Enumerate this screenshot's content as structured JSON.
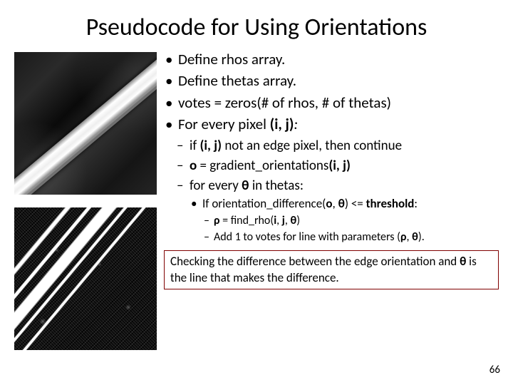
{
  "title": "Pseudocode for Using Orientations",
  "bullets": {
    "b1": "Define rhos array.",
    "b2": "Define thetas array.",
    "b3": "votes = zeros(# of rhos, # of thetas)",
    "b4_prefix": "For every pixel ",
    "b4_bold": "(i, j)",
    "b4_suffix": ":"
  },
  "sub": {
    "s1_prefix": "if ",
    "s1_bold": "(i, j)",
    "s1_suffix": " not an edge pixel, then continue",
    "s2_bold1": "o",
    "s2_mid": " = gradient_orientations",
    "s2_bold2": "(i, j)",
    "s3_prefix": "for every ",
    "s3_bold": "θ",
    "s3_suffix": " in thetas:"
  },
  "sub2": {
    "t1_prefix": "If orientation_difference(",
    "t1_bold1": "o",
    "t1_mid1": ", ",
    "t1_bold2": "θ",
    "t1_mid2": ") <= ",
    "t1_bold3": "threshold",
    "t1_suffix": ":"
  },
  "sub3": {
    "u1_bold1": "ρ",
    "u1_mid": " = find_rho(",
    "u1_bold2": "i",
    "u1_mid2": ", ",
    "u1_bold3": "j",
    "u1_mid3": ", ",
    "u1_bold4": "θ",
    "u1_suffix": ")",
    "u2_prefix": "Add 1 to votes for line with parameters (",
    "u2_bold1": "ρ",
    "u2_mid": ", ",
    "u2_bold2": "θ",
    "u2_suffix": ")."
  },
  "footer": {
    "text_prefix": "Checking the difference between the edge orientation and ",
    "text_bold": "θ",
    "text_suffix": " is the line that makes the difference."
  },
  "page_number": "66",
  "colors": {
    "footer_border": "#800000",
    "background": "#ffffff",
    "text": "#000000"
  }
}
